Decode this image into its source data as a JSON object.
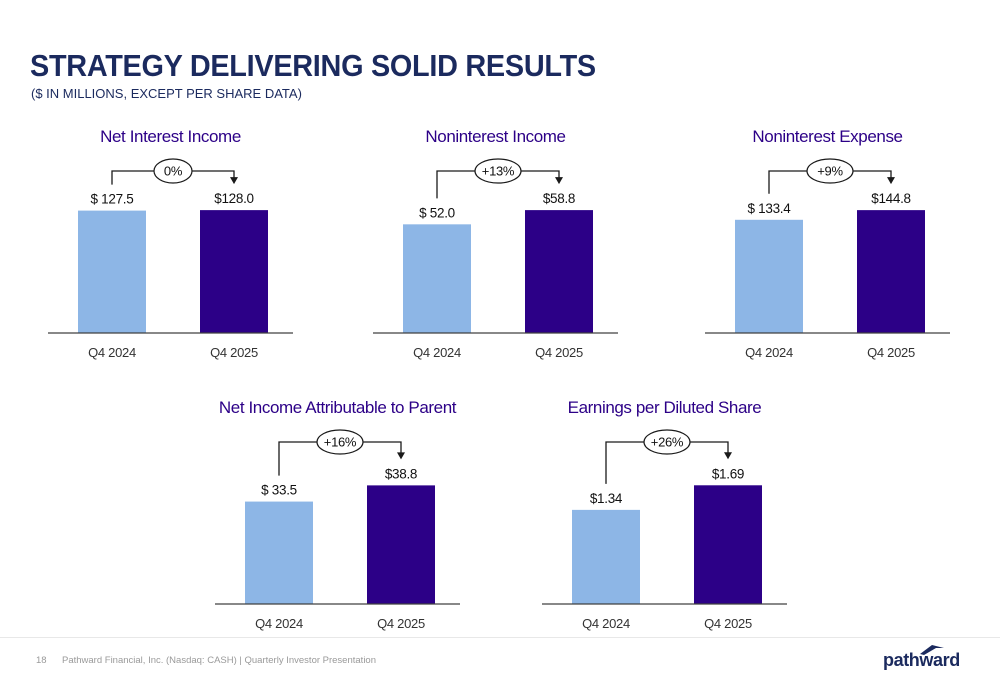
{
  "header": {
    "title": "STRATEGY DELIVERING SOLID RESULTS",
    "subtitle": "($ IN MILLIONS, EXCEPT PER SHARE DATA)"
  },
  "colors": {
    "prior": "#8db6e6",
    "current": "#2c0087",
    "title_text": "#2c0087",
    "axis": "#404040"
  },
  "chart_data": [
    {
      "type": "bar",
      "title": "Net Interest Income",
      "categories": [
        "Q4 2024",
        "Q4 2025"
      ],
      "values": [
        127.5,
        128.0
      ],
      "labels": [
        "$ 127.5",
        "$128.0"
      ],
      "change": "0%",
      "ylim": [
        0,
        150
      ]
    },
    {
      "type": "bar",
      "title": "Noninterest Income",
      "categories": [
        "Q4 2024",
        "Q4 2025"
      ],
      "values": [
        52.0,
        58.8
      ],
      "labels": [
        "$ 52.0",
        "$58.8"
      ],
      "change": "+13%",
      "ylim": [
        0,
        68.9
      ]
    },
    {
      "type": "bar",
      "title": "Noninterest Expense",
      "categories": [
        "Q4 2024",
        "Q4 2025"
      ],
      "values": [
        133.4,
        144.8
      ],
      "labels": [
        "$ 133.4",
        "$144.8"
      ],
      "change": "+9%",
      "ylim": [
        0,
        169.7
      ]
    },
    {
      "type": "bar",
      "title": "Net Income Attributable to Parent",
      "categories": [
        "Q4 2024",
        "Q4 2025"
      ],
      "values": [
        33.5,
        38.8
      ],
      "labels": [
        "$ 33.5",
        "$38.8"
      ],
      "change": "+16%",
      "ylim": [
        0,
        47.1
      ]
    },
    {
      "type": "bar",
      "title": "Earnings per Diluted Share",
      "categories": [
        "Q4 2024",
        "Q4 2025"
      ],
      "values": [
        1.34,
        1.69
      ],
      "labels": [
        "$1.34",
        "$1.69"
      ],
      "change": "+26%",
      "ylim": [
        0,
        2.05
      ]
    }
  ],
  "footer": {
    "page_number": "18",
    "text": "Pathward Financial, Inc. (Nasdaq: CASH) | Quarterly Investor Presentation",
    "logo": "pathward"
  }
}
